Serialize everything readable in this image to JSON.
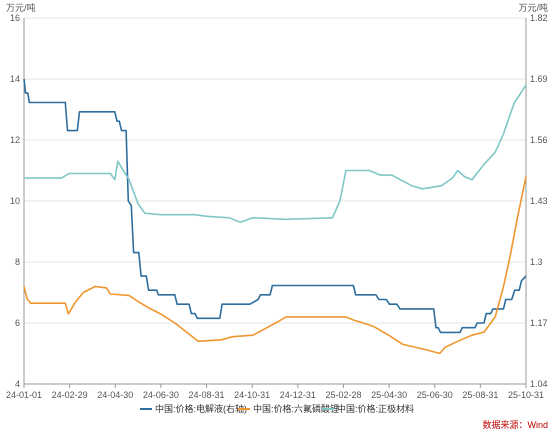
{
  "chart_data": {
    "type": "line",
    "y_left": {
      "unit": "万元/吨",
      "ylim": [
        4,
        16
      ],
      "ticks": [
        "4",
        "6",
        "8",
        "10",
        "12",
        "14",
        "16"
      ]
    },
    "y_right": {
      "unit": "万元/吨",
      "ylim": [
        1.04,
        1.82
      ],
      "ticks": [
        "1.04",
        "1.17",
        "1.3",
        "1.43",
        "1.56",
        "1.69",
        "1.82"
      ]
    },
    "x_ticks": [
      "24-01-01",
      "24-02-29",
      "24-04-30",
      "24-06-30",
      "24-08-31",
      "24-10-31",
      "24-12-31",
      "25-02-28",
      "25-04-30",
      "25-06-30",
      "25-08-31",
      "25-10-31"
    ],
    "x_range": [
      "2024-01-01",
      "2025-10-31"
    ],
    "grid": {
      "horizontal": true,
      "vertical": false
    },
    "legend_position": "bottom",
    "source": "数据来源：Wind",
    "series": [
      {
        "name": "中国:价格:电解液(右轴)",
        "axis": "right",
        "color": "#2e6e9e",
        "points": [
          [
            "2024-01-01",
            1.69
          ],
          [
            "2024-01-03",
            1.66
          ],
          [
            "2024-01-06",
            1.66
          ],
          [
            "2024-01-08",
            1.64
          ],
          [
            "2024-02-25",
            1.64
          ],
          [
            "2024-02-28",
            1.58
          ],
          [
            "2024-03-12",
            1.58
          ],
          [
            "2024-03-15",
            1.62
          ],
          [
            "2024-05-01",
            1.62
          ],
          [
            "2024-05-04",
            1.6
          ],
          [
            "2024-05-07",
            1.6
          ],
          [
            "2024-05-10",
            1.58
          ],
          [
            "2024-05-16",
            1.58
          ],
          [
            "2024-05-19",
            1.43
          ],
          [
            "2024-05-23",
            1.42
          ],
          [
            "2024-05-26",
            1.32
          ],
          [
            "2024-06-02",
            1.32
          ],
          [
            "2024-06-05",
            1.27
          ],
          [
            "2024-06-12",
            1.27
          ],
          [
            "2024-06-15",
            1.24
          ],
          [
            "2024-06-26",
            1.24
          ],
          [
            "2024-06-28",
            1.23
          ],
          [
            "2024-07-20",
            1.23
          ],
          [
            "2024-07-23",
            1.21
          ],
          [
            "2024-08-08",
            1.21
          ],
          [
            "2024-08-11",
            1.19
          ],
          [
            "2024-08-16",
            1.19
          ],
          [
            "2024-08-19",
            1.18
          ],
          [
            "2024-09-18",
            1.18
          ],
          [
            "2024-09-21",
            1.21
          ],
          [
            "2024-10-28",
            1.21
          ],
          [
            "2024-11-08",
            1.22
          ],
          [
            "2024-11-11",
            1.23
          ],
          [
            "2024-11-24",
            1.23
          ],
          [
            "2024-11-27",
            1.25
          ],
          [
            "2024-12-31",
            1.25
          ],
          [
            "2025-03-15",
            1.25
          ],
          [
            "2025-03-18",
            1.23
          ],
          [
            "2025-04-14",
            1.23
          ],
          [
            "2025-04-18",
            1.22
          ],
          [
            "2025-04-28",
            1.22
          ],
          [
            "2025-05-02",
            1.21
          ],
          [
            "2025-05-12",
            1.21
          ],
          [
            "2025-05-16",
            1.2
          ],
          [
            "2025-06-30",
            1.2
          ],
          [
            "2025-07-03",
            1.16
          ],
          [
            "2025-07-06",
            1.16
          ],
          [
            "2025-07-09",
            1.15
          ],
          [
            "2025-08-04",
            1.15
          ],
          [
            "2025-08-07",
            1.16
          ],
          [
            "2025-08-24",
            1.16
          ],
          [
            "2025-08-27",
            1.17
          ],
          [
            "2025-09-05",
            1.17
          ],
          [
            "2025-09-08",
            1.19
          ],
          [
            "2025-09-14",
            1.19
          ],
          [
            "2025-09-17",
            1.2
          ],
          [
            "2025-10-01",
            1.2
          ],
          [
            "2025-10-04",
            1.22
          ],
          [
            "2025-10-12",
            1.22
          ],
          [
            "2025-10-16",
            1.24
          ],
          [
            "2025-10-22",
            1.24
          ],
          [
            "2025-10-25",
            1.26
          ],
          [
            "2025-10-31",
            1.27
          ]
        ]
      },
      {
        "name": "中国:价格:六氟磷酸锂",
        "axis": "left",
        "color": "#f0962e",
        "points": [
          [
            "2024-01-01",
            7.2
          ],
          [
            "2024-01-05",
            6.8
          ],
          [
            "2024-01-10",
            6.65
          ],
          [
            "2024-02-25",
            6.65
          ],
          [
            "2024-02-29",
            6.3
          ],
          [
            "2024-03-05",
            6.5
          ],
          [
            "2024-03-10",
            6.7
          ],
          [
            "2024-03-20",
            7.0
          ],
          [
            "2024-04-05",
            7.2
          ],
          [
            "2024-04-20",
            7.15
          ],
          [
            "2024-04-25",
            6.95
          ],
          [
            "2024-05-20",
            6.9
          ],
          [
            "2024-06-01",
            6.7
          ],
          [
            "2024-06-15",
            6.5
          ],
          [
            "2024-07-01",
            6.3
          ],
          [
            "2024-07-20",
            6.0
          ],
          [
            "2024-08-10",
            5.6
          ],
          [
            "2024-08-20",
            5.4
          ],
          [
            "2024-09-20",
            5.45
          ],
          [
            "2024-10-05",
            5.55
          ],
          [
            "2024-11-01",
            5.6
          ],
          [
            "2024-11-20",
            5.85
          ],
          [
            "2024-12-05",
            6.05
          ],
          [
            "2024-12-15",
            6.2
          ],
          [
            "2025-03-05",
            6.2
          ],
          [
            "2025-03-15",
            6.1
          ],
          [
            "2025-04-10",
            5.9
          ],
          [
            "2025-05-01",
            5.6
          ],
          [
            "2025-05-20",
            5.3
          ],
          [
            "2025-06-15",
            5.15
          ],
          [
            "2025-07-01",
            5.05
          ],
          [
            "2025-07-08",
            5.0
          ],
          [
            "2025-07-15",
            5.2
          ],
          [
            "2025-08-01",
            5.4
          ],
          [
            "2025-08-20",
            5.6
          ],
          [
            "2025-09-05",
            5.7
          ],
          [
            "2025-09-20",
            6.2
          ],
          [
            "2025-10-01",
            7.2
          ],
          [
            "2025-10-10",
            8.2
          ],
          [
            "2025-10-20",
            9.5
          ],
          [
            "2025-10-31",
            10.8
          ]
        ]
      },
      {
        "name": "中国:价格:正极材料",
        "axis": "left",
        "color": "#7fc7c6",
        "points": [
          [
            "2024-01-01",
            10.75
          ],
          [
            "2024-02-20",
            10.75
          ],
          [
            "2024-03-01",
            10.9
          ],
          [
            "2024-04-25",
            10.9
          ],
          [
            "2024-05-01",
            10.7
          ],
          [
            "2024-05-05",
            11.3
          ],
          [
            "2024-05-10",
            11.1
          ],
          [
            "2024-05-20",
            10.7
          ],
          [
            "2024-06-01",
            9.9
          ],
          [
            "2024-06-10",
            9.6
          ],
          [
            "2024-07-01",
            9.55
          ],
          [
            "2024-08-15",
            9.55
          ],
          [
            "2024-09-01",
            9.5
          ],
          [
            "2024-10-01",
            9.45
          ],
          [
            "2024-10-15",
            9.3
          ],
          [
            "2024-11-01",
            9.45
          ],
          [
            "2024-12-15",
            9.4
          ],
          [
            "2025-02-15",
            9.45
          ],
          [
            "2025-02-25",
            10.0
          ],
          [
            "2025-03-01",
            10.5
          ],
          [
            "2025-03-05",
            11.0
          ],
          [
            "2025-04-05",
            11.0
          ],
          [
            "2025-04-20",
            10.85
          ],
          [
            "2025-05-05",
            10.85
          ],
          [
            "2025-06-01",
            10.5
          ],
          [
            "2025-06-15",
            10.4
          ],
          [
            "2025-07-10",
            10.5
          ],
          [
            "2025-07-25",
            10.75
          ],
          [
            "2025-08-01",
            11.0
          ],
          [
            "2025-08-10",
            10.8
          ],
          [
            "2025-08-20",
            10.7
          ],
          [
            "2025-09-05",
            11.2
          ],
          [
            "2025-09-20",
            11.6
          ],
          [
            "2025-10-01",
            12.2
          ],
          [
            "2025-10-15",
            13.2
          ],
          [
            "2025-10-31",
            13.8
          ]
        ]
      }
    ]
  }
}
